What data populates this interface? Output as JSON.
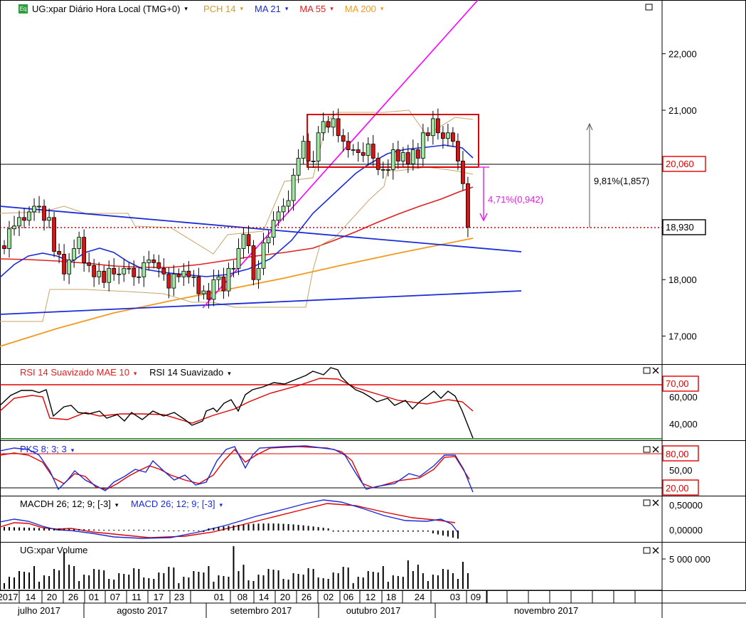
{
  "header": {
    "symbol_icon": "Eq",
    "title": "UG:xpar Diário Hora Local (TMG+0)",
    "indicators": [
      {
        "label": "PCH 14",
        "color": "#d59c24"
      },
      {
        "label": "MA 21",
        "color": "#1a2bd8"
      },
      {
        "label": "MA 55",
        "color": "#e02020"
      },
      {
        "label": "MA 200",
        "color": "#f39a1e"
      }
    ]
  },
  "price_panel": {
    "y_ticks": [
      "22,000",
      "21,000",
      "18,000",
      "17,000"
    ],
    "badge_high": "20,060",
    "badge_last": "18,930",
    "annot_big": "9,81%(1,857)",
    "annot_small": "4,71%(0,942)"
  },
  "rsi_panel": {
    "label1": "RSI 14 Suavizado MAE 10",
    "label2": "RSI 14 Suavizado",
    "ticks": [
      "60,000",
      "40,000"
    ],
    "badge": "70,00"
  },
  "pks_panel": {
    "label": "PKS 8; 3; 3",
    "ticks": [
      "50,00"
    ],
    "badge_top": "80,00",
    "badge_bottom": "20,00"
  },
  "macd_panel": {
    "label1": "MACDH 26; 12; 9; [-3]",
    "label2": "MACD 26; 12; 9; [-3]",
    "ticks": [
      "0,50000",
      "0,00000"
    ]
  },
  "volume_panel": {
    "label": "UG:xpar Volume",
    "ticks": [
      "5 000 000"
    ]
  },
  "x_axis": {
    "days": [
      "2017",
      "14",
      "20",
      "26",
      "01",
      "07",
      "11",
      "17",
      "23",
      "01",
      "08",
      "14",
      "20",
      "26",
      "02",
      "06",
      "12",
      "18",
      "24",
      "03",
      "09"
    ],
    "months": [
      "julho 2017",
      "agosto 2017",
      "setembro 2017",
      "outubro 2017",
      "novembro 2017"
    ]
  },
  "chart_data": {
    "type": "candlestick",
    "symbol": "UG:xpar",
    "ohlc_close_approx": [
      18.55,
      18.9,
      18.95,
      19.1,
      19.05,
      19.2,
      19.3,
      19.3,
      19.05,
      19.1,
      18.5,
      18.45,
      18.1,
      18.35,
      18.55,
      18.75,
      18.3,
      18.25,
      18.05,
      18.15,
      17.95,
      18.2,
      18.1,
      18.1,
      18.2,
      18.2,
      18.05,
      18.05,
      18.3,
      18.35,
      18.3,
      18.2,
      18.1,
      17.85,
      18.1,
      18.05,
      18.15,
      18.05,
      18.05,
      17.75,
      17.8,
      17.65,
      18.0,
      18.05,
      17.8,
      18.2,
      18.2,
      18.55,
      18.8,
      18.6,
      18.0,
      18.2,
      18.65,
      18.75,
      19.05,
      19.2,
      19.3,
      19.4,
      19.85,
      20.15,
      20.45,
      20.1,
      20.1,
      20.6,
      20.8,
      20.7,
      20.85,
      20.55,
      20.45,
      20.3,
      20.3,
      20.25,
      20.2,
      20.4,
      20.15,
      19.95,
      19.95,
      19.95,
      20.3,
      20.1,
      20.25,
      20.05,
      20.3,
      20.15,
      20.6,
      20.55,
      20.85,
      20.6,
      20.5,
      20.6,
      20.45,
      20.1,
      19.7,
      18.93
    ],
    "y_range": [
      16.6,
      22.7
    ],
    "last": 18.93,
    "rectangle": {
      "top": 20.93,
      "bottom": 20.0
    },
    "annotations": [
      "9,81%(1,857)",
      "4,71%(0,942)"
    ]
  }
}
